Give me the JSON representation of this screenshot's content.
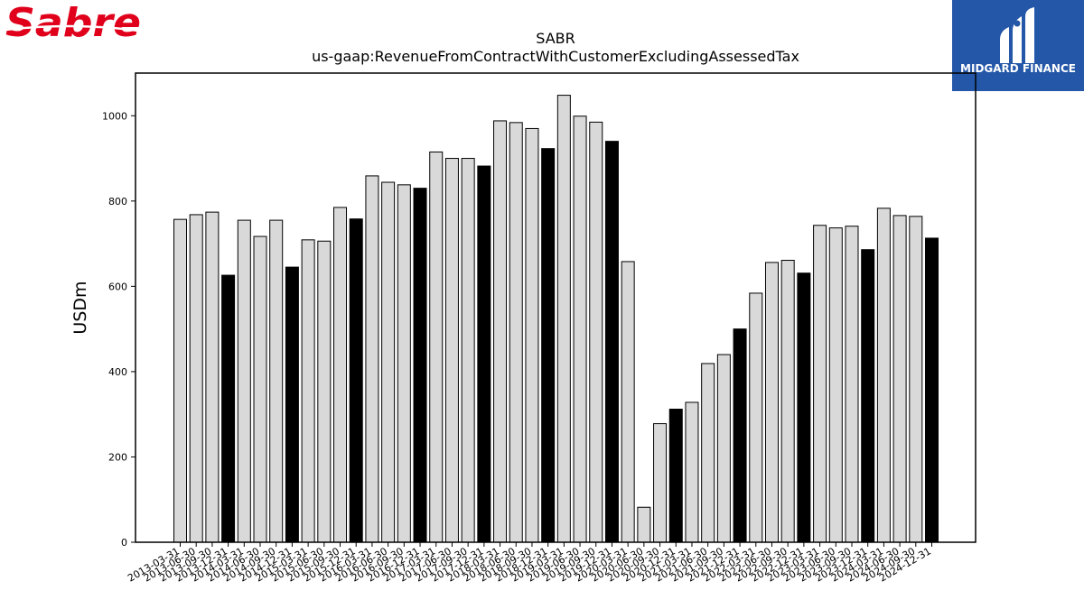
{
  "logos": {
    "left_text": "Sabre",
    "right_text": "MIDGARD FINANCE",
    "sabre_red": "#e0001b",
    "midgard_blue": "#2457a8"
  },
  "chart_data": {
    "type": "bar",
    "title": "SABR",
    "subtitle": "us-gaap:RevenueFromContractWithCustomerExcludingAssessedTax",
    "xlabel": "",
    "ylabel": "USDm",
    "ylim": [
      0,
      1100
    ],
    "yticks": [
      0,
      200,
      400,
      600,
      800,
      1000
    ],
    "grid": false,
    "colors": {
      "quarter_bar": "#d9d9d9",
      "year_end_bar": "#000000",
      "edge": "#000000"
    },
    "categories": [
      "2013-03-31",
      "2013-06-30",
      "2013-09-30",
      "2013-12-31",
      "2014-03-31",
      "2014-06-30",
      "2014-09-30",
      "2014-12-31",
      "2015-03-31",
      "2015-06-30",
      "2015-09-30",
      "2015-12-31",
      "2016-03-31",
      "2016-06-30",
      "2016-09-30",
      "2016-12-31",
      "2017-03-31",
      "2017-06-30",
      "2017-09-30",
      "2017-12-31",
      "2018-03-31",
      "2018-06-30",
      "2018-09-30",
      "2018-12-31",
      "2019-03-31",
      "2019-06-30",
      "2019-09-30",
      "2019-12-31",
      "2020-03-31",
      "2020-06-30",
      "2020-09-30",
      "2020-12-31",
      "2021-03-31",
      "2021-06-30",
      "2021-09-30",
      "2021-12-31",
      "2022-03-31",
      "2022-06-30",
      "2022-09-30",
      "2022-12-31",
      "2023-03-31",
      "2023-06-30",
      "2023-09-30",
      "2023-12-31",
      "2024-03-31",
      "2024-06-30",
      "2024-09-30",
      "2024-12-31"
    ],
    "values": [
      757,
      768,
      774,
      626,
      755,
      717,
      755,
      645,
      709,
      706,
      785,
      758,
      859,
      844,
      838,
      830,
      915,
      900,
      900,
      882,
      988,
      984,
      970,
      923,
      1048,
      999,
      985,
      940,
      658,
      82,
      278,
      312,
      328,
      419,
      440,
      500,
      584,
      656,
      661,
      631,
      743,
      737,
      741,
      686,
      783,
      766,
      764,
      713
    ]
  }
}
